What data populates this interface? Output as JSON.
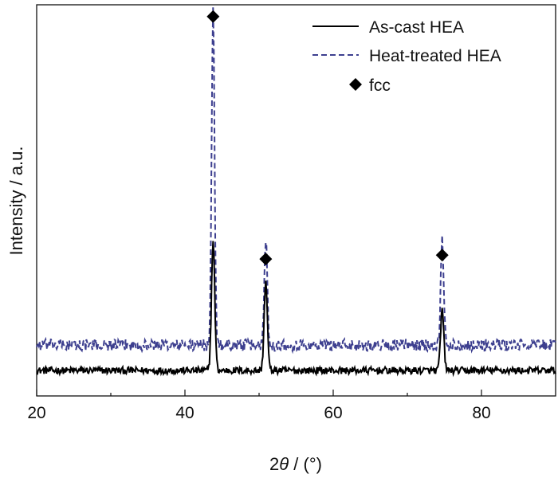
{
  "chart_data": {
    "type": "line",
    "title": "",
    "xlabel": "2θ / (°)",
    "xlabel_parts": {
      "prefix": "2",
      "symbol": "θ",
      "suffix": " / (°)"
    },
    "ylabel": "Intensity / a.u.",
    "xlim": [
      20,
      90
    ],
    "ylim": [
      0,
      100
    ],
    "x_ticks": [
      20,
      40,
      60,
      80
    ],
    "x_tick_labels": [
      "20",
      "40",
      "60",
      "80"
    ],
    "x_minor_ticks": [
      30,
      50,
      70
    ],
    "y_ticks_shown": false,
    "grid": false,
    "legend_position": "top-right",
    "series": [
      {
        "name": "As-cast HEA",
        "style": "solid",
        "color": "#000000",
        "baseline": 6.5,
        "noise": 0.9,
        "peaks": [
          {
            "x": 43.8,
            "height": 33,
            "width": 0.22
          },
          {
            "x": 50.9,
            "height": 22.5,
            "width": 0.22
          },
          {
            "x": 74.7,
            "height": 15.5,
            "width": 0.22
          }
        ]
      },
      {
        "name": "Heat-treated HEA",
        "style": "dashed",
        "color": "#3d3f8f",
        "baseline": 13,
        "noise": 1.5,
        "peaks": [
          {
            "x": 43.8,
            "height": 85,
            "width": 0.2
          },
          {
            "x": 50.9,
            "height": 27.5,
            "width": 0.2
          },
          {
            "x": 74.7,
            "height": 27.5,
            "width": 0.2
          }
        ]
      }
    ],
    "markers": [
      {
        "label": "fcc",
        "x": 43.8,
        "y": 97
      },
      {
        "label": "fcc",
        "x": 50.9,
        "y": 35
      },
      {
        "label": "fcc",
        "x": 74.7,
        "y": 36
      }
    ],
    "legend": [
      {
        "label": "As-cast HEA",
        "style": "solid"
      },
      {
        "label": "Heat-treated HEA",
        "style": "dashed"
      },
      {
        "label": "fcc",
        "style": "diamond"
      }
    ]
  }
}
